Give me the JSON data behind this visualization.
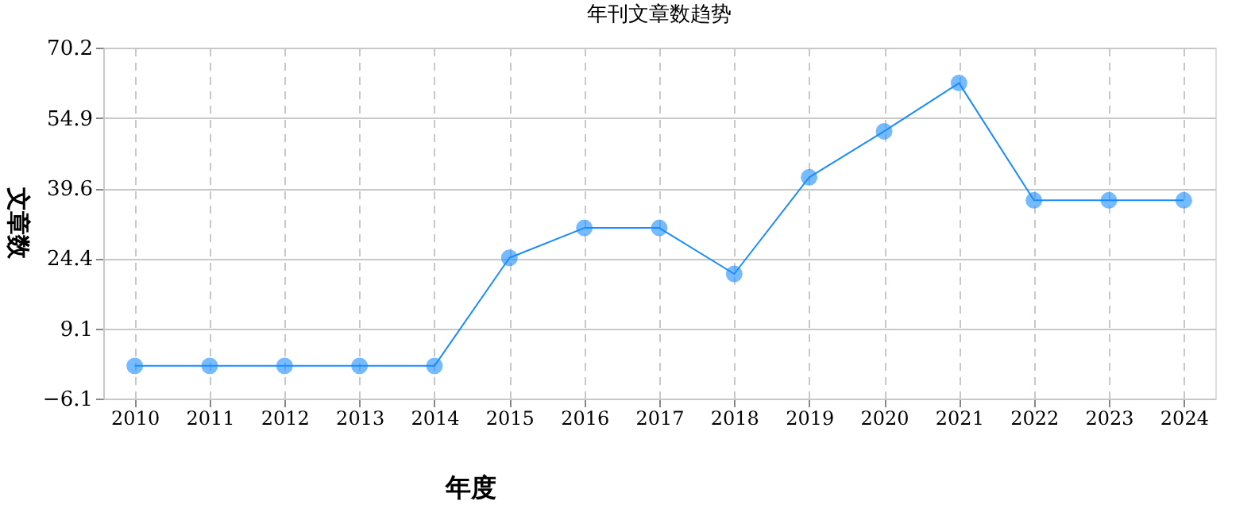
{
  "chart_data": {
    "type": "line",
    "title": "年刊文章数趋势",
    "xlabel": "年度",
    "ylabel": "文章数",
    "categories": [
      "2010",
      "2011",
      "2012",
      "2013",
      "2014",
      "2015",
      "2016",
      "2017",
      "2018",
      "2019",
      "2020",
      "2021",
      "2022",
      "2023",
      "2024"
    ],
    "series": [
      {
        "color": "#1a8cff",
        "values": [
          1,
          1,
          1,
          1,
          1,
          24.5,
          31,
          31,
          21,
          42,
          52,
          62.5,
          37,
          37,
          37
        ]
      }
    ],
    "ylim": [
      -6.1,
      70.2
    ],
    "yticks": [
      -6.1,
      9.1,
      24.4,
      39.6,
      54.9,
      70.2
    ],
    "grid": true,
    "marker": "circle",
    "line_style": "solid"
  }
}
